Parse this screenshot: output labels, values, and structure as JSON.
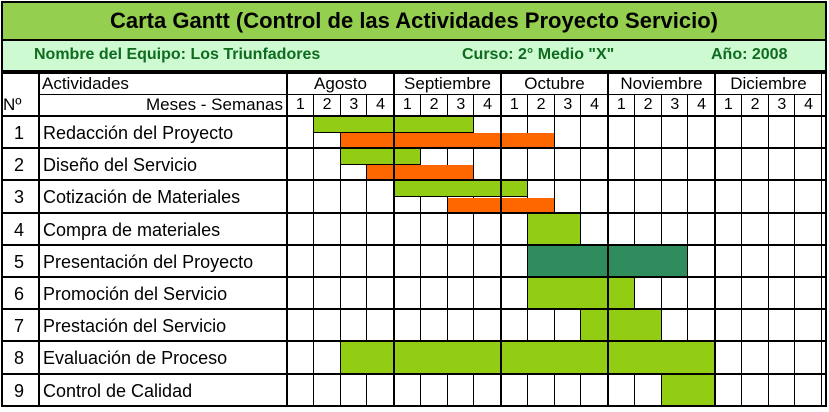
{
  "title": "Carta Gantt (Control de las Actividades Proyecto Servicio)",
  "info": {
    "team": "Nombre del Equipo: Los Triunfadores",
    "course": "Curso: 2° Medio \"X\"",
    "year": "Año: 2008"
  },
  "header": {
    "activities_label": "Actividades",
    "number_label": "Nº",
    "weeks_label": "Meses - Semanas"
  },
  "months": [
    "Agosto",
    "Septiembre",
    "Octubre",
    "Noviembre",
    "Diciembre"
  ],
  "weeks": [
    "1",
    "2",
    "3",
    "4"
  ],
  "colors": {
    "green": "#92cc13",
    "orange": "#fe6600",
    "teal": "#2f8d5d",
    "banner": "#95cf4f",
    "info_bg": "#cdfad0",
    "info_text": "#0f6b20"
  },
  "activities": [
    {
      "num": "1",
      "name": "Redacción del Proyecto",
      "bars": [
        {
          "color": "green",
          "start": 2,
          "end": 7
        },
        {
          "color": "orange",
          "start": 3,
          "end": 10
        }
      ]
    },
    {
      "num": "2",
      "name": "Diseño del Servicio",
      "bars": [
        {
          "color": "green",
          "start": 3,
          "end": 5
        },
        {
          "color": "orange",
          "start": 4,
          "end": 7
        }
      ]
    },
    {
      "num": "3",
      "name": "Cotización de Materiales",
      "bars": [
        {
          "color": "green",
          "start": 5,
          "end": 9
        },
        {
          "color": "orange",
          "start": 7,
          "end": 10
        }
      ]
    },
    {
      "num": "4",
      "name": "Compra de materiales",
      "bars": [
        {
          "color": "green",
          "start": 10,
          "end": 11
        }
      ]
    },
    {
      "num": "5",
      "name": "Presentación del Proyecto",
      "bars": [
        {
          "color": "teal",
          "start": 10,
          "end": 15
        }
      ]
    },
    {
      "num": "6",
      "name": "Promoción del Servicio",
      "bars": [
        {
          "color": "green",
          "start": 10,
          "end": 13
        }
      ]
    },
    {
      "num": "7",
      "name": "Prestación del Servicio",
      "bars": [
        {
          "color": "green",
          "start": 12,
          "end": 14
        }
      ]
    },
    {
      "num": "8",
      "name": "Evaluación de Proceso",
      "bars": [
        {
          "color": "green",
          "start": 3,
          "end": 16
        }
      ]
    },
    {
      "num": "9",
      "name": "Control de Calidad",
      "bars": [
        {
          "color": "green",
          "start": 15,
          "end": 16
        }
      ]
    }
  ]
}
